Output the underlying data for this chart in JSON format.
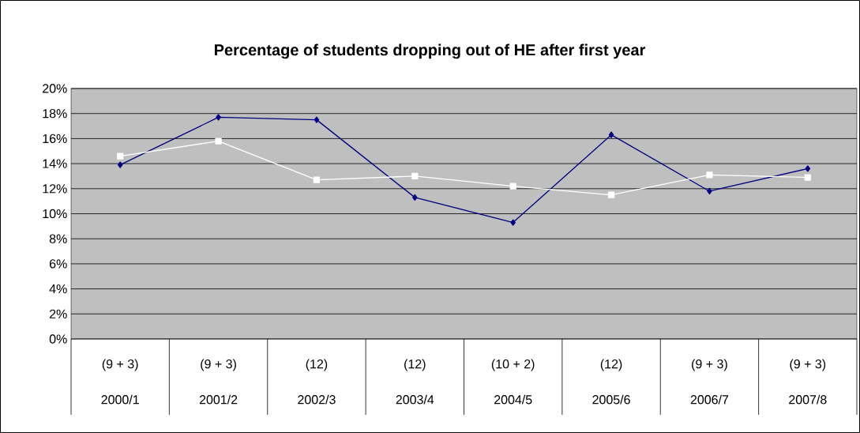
{
  "chart_data": {
    "type": "line",
    "title": "Percentage of students dropping out of HE after first year",
    "categories": [
      "2000/1",
      "2001/2",
      "2002/3",
      "2003/4",
      "2004/5",
      "2005/6",
      "2006/7",
      "2007/8"
    ],
    "annotations": [
      "(9 + 3)",
      "(9 + 3)",
      "(12)",
      "(12)",
      "(10 + 2)",
      "(12)",
      "(9 + 3)",
      "(9 + 3)"
    ],
    "series": [
      {
        "color": "#000080",
        "marker": "diamond",
        "values": [
          13.9,
          17.7,
          17.5,
          11.3,
          9.3,
          16.3,
          11.8,
          13.6
        ]
      },
      {
        "color": "#ffffff",
        "marker": "square",
        "values": [
          14.6,
          15.8,
          12.7,
          13.0,
          12.2,
          11.5,
          13.1,
          12.9
        ]
      }
    ],
    "ylim": [
      0,
      20
    ],
    "yticks": [
      {
        "value": 0,
        "label": "0%"
      },
      {
        "value": 2,
        "label": "2%"
      },
      {
        "value": 4,
        "label": "4%"
      },
      {
        "value": 6,
        "label": "6%"
      },
      {
        "value": 8,
        "label": "8%"
      },
      {
        "value": 10,
        "label": "10%"
      },
      {
        "value": 12,
        "label": "12%"
      },
      {
        "value": 14,
        "label": "14%"
      },
      {
        "value": 16,
        "label": "16%"
      },
      {
        "value": 18,
        "label": "18%"
      },
      {
        "value": 20,
        "label": "20%"
      }
    ],
    "grid": "y"
  }
}
